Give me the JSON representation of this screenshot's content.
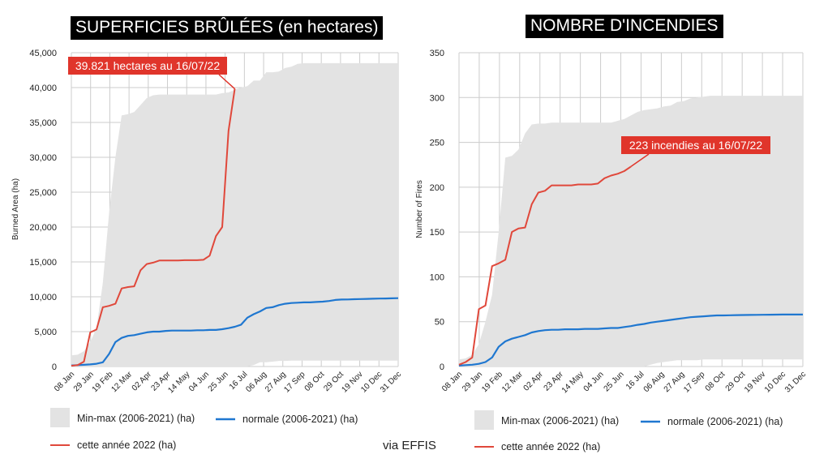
{
  "source_label": "via EFFIS",
  "colors": {
    "range_fill": "#e3e3e3",
    "normal_line": "#1f77d0",
    "current_line": "#e0483b",
    "annotation_bg": "#e0352b",
    "grid": "#cccccc",
    "title_bg": "#000000"
  },
  "chart_data": [
    {
      "type": "area",
      "title": "SUPERFICIES BRÛLÉES (en hectares)",
      "ylabel": "Burned Area (ha)",
      "xlabel": "",
      "ylim": [
        0,
        45000
      ],
      "y_ticks": [
        0,
        5000,
        10000,
        15000,
        20000,
        25000,
        30000,
        35000,
        40000,
        45000
      ],
      "y_tick_labels": [
        "0",
        "5,000",
        "10,000",
        "15,000",
        "20,000",
        "25,000",
        "30,000",
        "35,000",
        "40,000",
        "45,000"
      ],
      "x_ticks": [
        "08 Jan",
        "29 Jan",
        "19 Feb",
        "12 Mar",
        "02 Apr",
        "23 Apr",
        "14 May",
        "04 Jun",
        "25 Jun",
        "16 Jul",
        "06 Aug",
        "27 Aug",
        "17 Sep",
        "08 Oct",
        "29 Oct",
        "19 Nov",
        "10 Dec",
        "31 Dec"
      ],
      "grid": true,
      "legend_position": "bottom",
      "annotation": {
        "text": "39.821 hectares au 16/07/22",
        "week": 27,
        "value": 39821
      },
      "series": [
        {
          "name": "Min-max (2006-2021) (ha)",
          "kind": "range",
          "weeks": [
            1,
            2,
            3,
            4,
            5,
            6,
            7,
            8,
            9,
            10,
            11,
            12,
            13,
            14,
            15,
            16,
            17,
            18,
            19,
            20,
            21,
            22,
            23,
            24,
            25,
            26,
            27,
            28,
            29,
            30,
            31,
            32,
            33,
            34,
            35,
            36,
            37,
            38,
            39,
            40,
            41,
            42,
            43,
            44,
            45,
            46,
            47,
            48,
            49,
            50,
            51,
            52,
            53
          ],
          "max": [
            1600,
            1700,
            2200,
            3500,
            5500,
            12000,
            22000,
            30000,
            36000,
            36200,
            36500,
            37500,
            38500,
            38900,
            39000,
            39000,
            39000,
            39000,
            39000,
            39000,
            39000,
            39000,
            39000,
            39000,
            39200,
            39300,
            39700,
            40000,
            40200,
            41000,
            41000,
            42200,
            42200,
            42300,
            42800,
            43000,
            43400,
            43500,
            43500,
            43500,
            43500,
            43500,
            43500,
            43500,
            43500,
            43500,
            43500,
            43500,
            43500,
            43500,
            43500,
            43500,
            43500
          ],
          "min": [
            0,
            0,
            0,
            0,
            0,
            0,
            0,
            0,
            0,
            0,
            0,
            0,
            0,
            0,
            0,
            0,
            0,
            0,
            0,
            0,
            0,
            0,
            0,
            0,
            0,
            0,
            0,
            0,
            0,
            200,
            600,
            600,
            700,
            800,
            800,
            850,
            850,
            850,
            850,
            850,
            850,
            850,
            850,
            850,
            850,
            850,
            850,
            850,
            850,
            850,
            850,
            850,
            850
          ]
        },
        {
          "name": "normale (2006-2021) (ha)",
          "kind": "line",
          "weeks": [
            1,
            2,
            3,
            4,
            5,
            6,
            7,
            8,
            9,
            10,
            11,
            12,
            13,
            14,
            15,
            16,
            17,
            18,
            19,
            20,
            21,
            22,
            23,
            24,
            25,
            26,
            27,
            28,
            29,
            30,
            31,
            32,
            33,
            34,
            35,
            36,
            37,
            38,
            39,
            40,
            41,
            42,
            43,
            44,
            45,
            46,
            47,
            48,
            49,
            50,
            51,
            52,
            53
          ],
          "values": [
            150,
            200,
            250,
            300,
            400,
            600,
            1800,
            3500,
            4100,
            4400,
            4500,
            4700,
            4900,
            5000,
            5000,
            5100,
            5150,
            5150,
            5150,
            5150,
            5200,
            5200,
            5250,
            5250,
            5350,
            5500,
            5700,
            6000,
            7000,
            7500,
            7900,
            8400,
            8500,
            8800,
            9000,
            9100,
            9150,
            9200,
            9200,
            9250,
            9300,
            9400,
            9550,
            9600,
            9620,
            9650,
            9680,
            9700,
            9720,
            9740,
            9760,
            9780,
            9800
          ]
        },
        {
          "name": "cette année 2022 (ha)",
          "kind": "line",
          "weeks": [
            1,
            2,
            3,
            4,
            5,
            6,
            7,
            8,
            9,
            10,
            11,
            12,
            13,
            14,
            15,
            16,
            17,
            18,
            19,
            20,
            21,
            22,
            23,
            24,
            25,
            26,
            27
          ],
          "values": [
            100,
            200,
            700,
            4900,
            5300,
            8500,
            8700,
            9000,
            11200,
            11400,
            11500,
            13800,
            14700,
            14900,
            15200,
            15200,
            15200,
            15200,
            15250,
            15250,
            15250,
            15300,
            15900,
            18700,
            20000,
            33800,
            39821
          ]
        }
      ]
    },
    {
      "type": "area",
      "title": "NOMBRE D'INCENDIES",
      "ylabel": "Number of Fires",
      "xlabel": "",
      "ylim": [
        0,
        350
      ],
      "y_ticks": [
        0,
        50,
        100,
        150,
        200,
        250,
        300,
        350
      ],
      "y_tick_labels": [
        "0",
        "50",
        "100",
        "150",
        "200",
        "250",
        "300",
        "350"
      ],
      "x_ticks": [
        "08 Jan",
        "29 Jan",
        "19 Feb",
        "12 Mar",
        "02 Apr",
        "23 Apr",
        "14 May",
        "04 Jun",
        "25 Jun",
        "16 Jul",
        "06 Aug",
        "27 Aug",
        "17 Sep",
        "08 Oct",
        "29 Oct",
        "19 Nov",
        "10 Dec",
        "31 Dec"
      ],
      "grid": true,
      "legend_position": "bottom",
      "annotation": {
        "text": "223 incendies au 16/07/22",
        "week": 27,
        "value": 223
      },
      "series": [
        {
          "name": "Min-max (2006-2021) (ha)",
          "kind": "range",
          "weeks": [
            1,
            2,
            3,
            4,
            5,
            6,
            7,
            8,
            9,
            10,
            11,
            12,
            13,
            14,
            15,
            16,
            17,
            18,
            19,
            20,
            21,
            22,
            23,
            24,
            25,
            26,
            27,
            28,
            29,
            30,
            31,
            32,
            33,
            34,
            35,
            36,
            37,
            38,
            39,
            40,
            41,
            42,
            43,
            44,
            45,
            46,
            47,
            48,
            49,
            50,
            51,
            52,
            53
          ],
          "max": [
            8,
            9,
            13,
            25,
            50,
            80,
            150,
            233,
            235,
            242,
            260,
            270,
            271,
            271,
            272,
            272,
            272,
            272,
            272,
            272,
            272,
            272,
            272,
            272,
            274,
            276,
            280,
            284,
            286,
            287,
            288,
            290,
            291,
            295,
            296,
            299,
            300,
            301,
            302,
            302,
            302,
            302,
            302,
            302,
            302,
            302,
            302,
            302,
            302,
            302,
            302,
            302,
            302
          ],
          "min": [
            0,
            0,
            0,
            0,
            0,
            0,
            0,
            0,
            0,
            0,
            0,
            0,
            0,
            0,
            0,
            0,
            0,
            0,
            0,
            0,
            0,
            0,
            0,
            0,
            0,
            0,
            0,
            0,
            0,
            2,
            4,
            5,
            6,
            7,
            7,
            7,
            7,
            8,
            8,
            8,
            8,
            8,
            8,
            8,
            8,
            8,
            8,
            8,
            8,
            8,
            8,
            8,
            8
          ]
        },
        {
          "name": "normale (2006-2021) (ha)",
          "kind": "line",
          "weeks": [
            1,
            2,
            3,
            4,
            5,
            6,
            7,
            8,
            9,
            10,
            11,
            12,
            13,
            14,
            15,
            16,
            17,
            18,
            19,
            20,
            21,
            22,
            23,
            24,
            25,
            26,
            27,
            28,
            29,
            30,
            31,
            32,
            33,
            34,
            35,
            36,
            37,
            38,
            39,
            40,
            41,
            42,
            43,
            44,
            45,
            46,
            47,
            48,
            49,
            50,
            51,
            52,
            53
          ],
          "values": [
            1,
            1.5,
            2,
            3,
            5,
            10,
            22,
            28,
            31,
            33,
            35,
            38,
            39.5,
            40.5,
            41,
            41,
            41.5,
            41.5,
            41.5,
            42,
            42,
            42,
            42.5,
            43,
            43,
            44,
            45,
            46.5,
            47.5,
            49,
            50,
            51,
            52,
            53,
            54,
            55,
            55.5,
            56,
            56.5,
            57,
            57,
            57.2,
            57.3,
            57.4,
            57.5,
            57.6,
            57.7,
            57.8,
            57.9,
            58,
            58,
            58,
            58
          ]
        },
        {
          "name": "cette année 2022 (ha)",
          "kind": "line",
          "weeks": [
            1,
            2,
            3,
            4,
            5,
            6,
            7,
            8,
            9,
            10,
            11,
            12,
            13,
            14,
            15,
            16,
            17,
            18,
            19,
            20,
            21,
            22,
            23,
            24,
            25,
            26,
            27
          ],
          "values": [
            2,
            5,
            10,
            64,
            68,
            112,
            115,
            119,
            150,
            154,
            155,
            181,
            194,
            196,
            202,
            202,
            202,
            202,
            203,
            203,
            203,
            204,
            210,
            213,
            215,
            218,
            223
          ]
        }
      ]
    }
  ]
}
